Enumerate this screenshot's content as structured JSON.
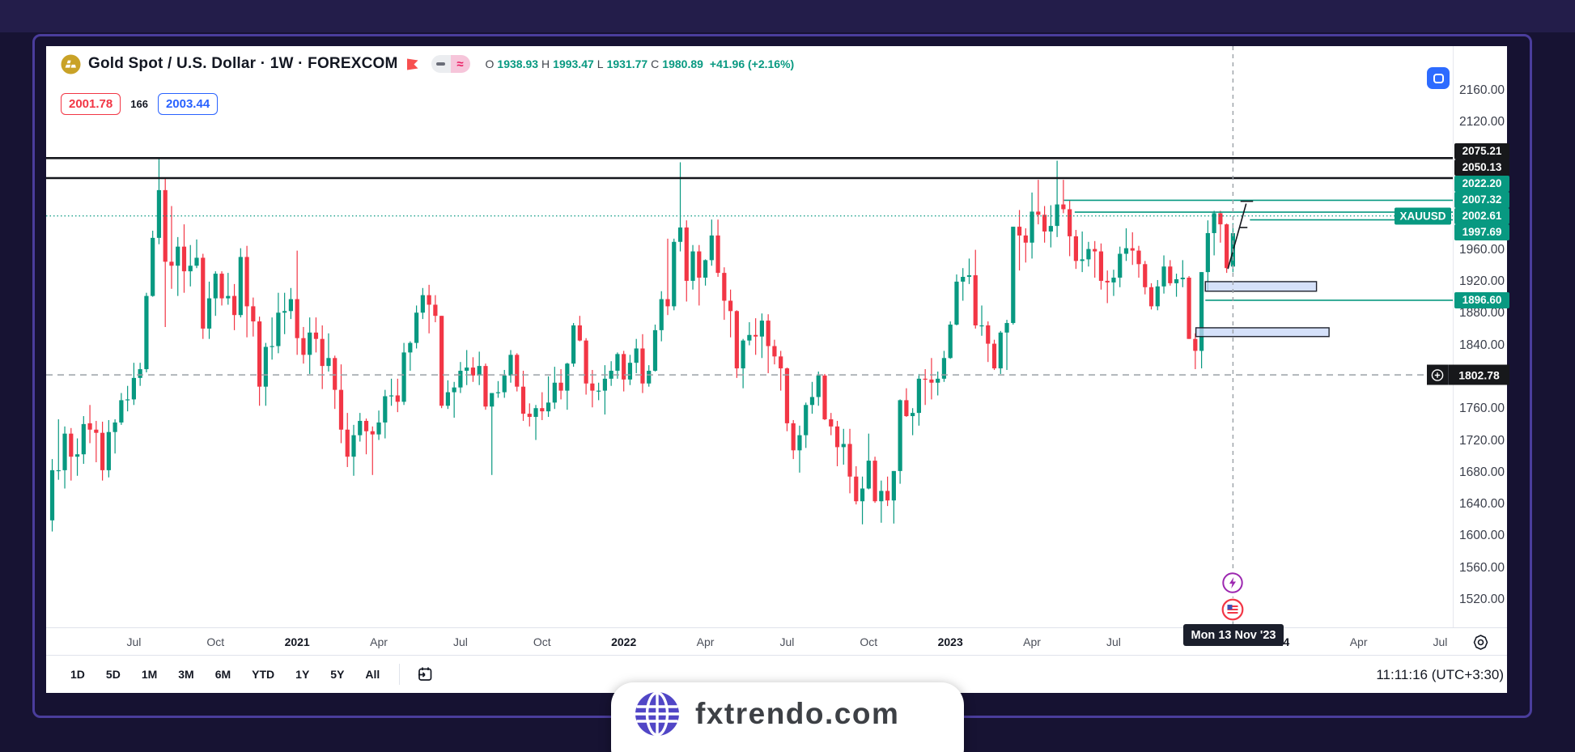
{
  "header": {
    "symbol_title": "Gold Spot / U.S. Dollar · 1W · FOREXCOM",
    "ohlc": {
      "o_label": "O",
      "o": "1938.93",
      "h_label": "H",
      "h": "1993.47",
      "l_label": "L",
      "l": "1931.77",
      "c_label": "C",
      "c": "1980.89",
      "change": "+41.96 (+2.16%)"
    },
    "sell_price": "2001.78",
    "spread": "166",
    "buy_price": "2003.44"
  },
  "toolbar": {
    "ranges": [
      "1D",
      "5D",
      "1M",
      "3M",
      "6M",
      "YTD",
      "1Y",
      "5Y",
      "All"
    ],
    "active_range": "5D",
    "clock": "11:11:16 (UTC+3:30)"
  },
  "watermark": {
    "text": "fxtrendo.com"
  },
  "colors": {
    "up": "#089981",
    "down": "#f23645",
    "sell": "#f23645",
    "buy": "#2962ff",
    "accent_blue": "#2d6bff",
    "black_line": "#15171c",
    "crosshair": "#9aa0a6",
    "event_purple": "#9c27b0",
    "event_red": "#f23645",
    "box_fill": "#c7d7f8",
    "frame_purple": "#4a3d9c"
  },
  "chart_data": {
    "type": "candlestick",
    "symbol": "XAUUSD",
    "symbol_label": "XAUUSD",
    "timeframe": "1W",
    "ylim": [
      1485,
      2216
    ],
    "grid": false,
    "price_ticks": [
      2160,
      2120,
      1960,
      1920,
      1880,
      1840,
      1760,
      1720,
      1680,
      1640,
      1600,
      1560,
      1520
    ],
    "time_ticks": [
      {
        "label": "Jul",
        "index": 13,
        "year": false
      },
      {
        "label": "Oct",
        "index": 26,
        "year": false
      },
      {
        "label": "2021",
        "index": 39,
        "year": true
      },
      {
        "label": "Apr",
        "index": 52,
        "year": false
      },
      {
        "label": "Jul",
        "index": 65,
        "year": false
      },
      {
        "label": "Oct",
        "index": 78,
        "year": false
      },
      {
        "label": "2022",
        "index": 91,
        "year": true
      },
      {
        "label": "Apr",
        "index": 104,
        "year": false
      },
      {
        "label": "Jul",
        "index": 117,
        "year": false
      },
      {
        "label": "Oct",
        "index": 130,
        "year": false
      },
      {
        "label": "2023",
        "index": 143,
        "year": true
      },
      {
        "label": "Apr",
        "index": 156,
        "year": false
      },
      {
        "label": "Jul",
        "index": 169,
        "year": false
      },
      {
        "label": "2024",
        "index": 195,
        "year": true
      },
      {
        "label": "Apr",
        "index": 208,
        "year": false
      },
      {
        "label": "Jul",
        "index": 221,
        "year": false
      }
    ],
    "badges": [
      {
        "price": 2075.21,
        "label": "2075.21",
        "style": "dark"
      },
      {
        "price": 2050.13,
        "label": "2050.13",
        "style": "dark"
      },
      {
        "price": 2022.2,
        "label": "2022.20",
        "style": "teal"
      },
      {
        "price": 2007.32,
        "label": "2007.32",
        "style": "teal"
      },
      {
        "price": 2002.61,
        "label": "2002.61",
        "style": "teal",
        "anchor": true
      },
      {
        "price": 1997.69,
        "label": "1997.69",
        "style": "teal"
      },
      {
        "price": 1896.6,
        "label": "1896.60",
        "style": "teal"
      },
      {
        "price": 1802.78,
        "label": "1802.78",
        "style": "cross"
      }
    ],
    "overlays": {
      "hlines": [
        {
          "price": 2075.21,
          "width": 2.6
        },
        {
          "price": 2050.13,
          "width": 2.6
        }
      ],
      "dotted_line": {
        "price": 2002.61
      },
      "dashed_hline": {
        "price": 1802.78
      },
      "rays": [
        {
          "price": 2022.2,
          "from_index": 161.1
        },
        {
          "price": 2007.32,
          "from_index": 162.8
        },
        {
          "price": 1997.69,
          "from_index": 190.7
        },
        {
          "price": 1896.6,
          "from_index": 183.6
        }
      ],
      "boxes": [
        {
          "price_top": 1920,
          "price_bottom": 1908,
          "from_index": 183.6,
          "to_index": 201.3
        },
        {
          "price_top": 1862,
          "price_bottom": 1851,
          "from_index": 182.1,
          "to_index": 203.3
        }
      ],
      "trend_lines": [
        {
          "x1_index": 187.2,
          "price1": 1936,
          "x2_index": 190.1,
          "price2": 2018
        },
        {
          "x1_index": 189.2,
          "price1": 2021,
          "x2_index": 191.2,
          "price2": 2021
        },
        {
          "x1_index": 189.1,
          "price1": 1988,
          "x2_index": 190.3,
          "price2": 1988
        }
      ]
    },
    "crosshair": {
      "index": 188,
      "price": 1802.78,
      "price_label": "1802.78",
      "time_label": "Mon 13 Nov '23"
    },
    "candles": [
      [
        1620,
        1697,
        1606,
        1683
      ],
      [
        1683,
        1747,
        1671,
        1683
      ],
      [
        1683,
        1738,
        1660,
        1729
      ],
      [
        1729,
        1736,
        1670,
        1700
      ],
      [
        1700,
        1723,
        1676,
        1703
      ],
      [
        1703,
        1751,
        1691,
        1741
      ],
      [
        1742,
        1765,
        1717,
        1734
      ],
      [
        1734,
        1745,
        1693,
        1730
      ],
      [
        1730,
        1744,
        1670,
        1683
      ],
      [
        1683,
        1746,
        1674,
        1731
      ],
      [
        1731,
        1747,
        1704,
        1743
      ],
      [
        1743,
        1780,
        1740,
        1771
      ],
      [
        1771,
        1789,
        1757,
        1772
      ],
      [
        1772,
        1818,
        1765,
        1799
      ],
      [
        1799,
        1818,
        1789,
        1810
      ],
      [
        1810,
        1906,
        1806,
        1902
      ],
      [
        1902,
        1984,
        1901,
        1975
      ],
      [
        1975,
        2075,
        1967,
        2035
      ],
      [
        2035,
        2050,
        1863,
        1945
      ],
      [
        1945,
        2015,
        1911,
        1940
      ],
      [
        1940,
        1976,
        1902,
        1964
      ],
      [
        1964,
        1992,
        1906,
        1933
      ],
      [
        1933,
        1966,
        1914,
        1940
      ],
      [
        1940,
        1973,
        1937,
        1950
      ],
      [
        1950,
        1955,
        1848,
        1861
      ],
      [
        1861,
        1920,
        1848,
        1899
      ],
      [
        1899,
        1933,
        1877,
        1930
      ],
      [
        1930,
        1933,
        1890,
        1899
      ],
      [
        1899,
        1931,
        1891,
        1902
      ],
      [
        1902,
        1917,
        1859,
        1878
      ],
      [
        1878,
        1962,
        1875,
        1951
      ],
      [
        1951,
        1965,
        1850,
        1889
      ],
      [
        1889,
        1900,
        1851,
        1870
      ],
      [
        1870,
        1876,
        1764,
        1788
      ],
      [
        1788,
        1843,
        1764,
        1838
      ],
      [
        1838,
        1875,
        1822,
        1839
      ],
      [
        1839,
        1906,
        1830,
        1881
      ],
      [
        1881,
        1906,
        1854,
        1883
      ],
      [
        1883,
        1912,
        1873,
        1898
      ],
      [
        1898,
        1959,
        1828,
        1849
      ],
      [
        1849,
        1863,
        1817,
        1828
      ],
      [
        1828,
        1875,
        1804,
        1856
      ],
      [
        1856,
        1875,
        1831,
        1848
      ],
      [
        1848,
        1865,
        1785,
        1814
      ],
      [
        1814,
        1855,
        1807,
        1824
      ],
      [
        1824,
        1827,
        1760,
        1784
      ],
      [
        1784,
        1816,
        1717,
        1734
      ],
      [
        1734,
        1755,
        1687,
        1700
      ],
      [
        1700,
        1740,
        1676,
        1727
      ],
      [
        1727,
        1755,
        1719,
        1745
      ],
      [
        1745,
        1748,
        1703,
        1732
      ],
      [
        1732,
        1738,
        1677,
        1728
      ],
      [
        1728,
        1758,
        1721,
        1743
      ],
      [
        1743,
        1784,
        1723,
        1776
      ],
      [
        1776,
        1798,
        1764,
        1777
      ],
      [
        1777,
        1798,
        1756,
        1769
      ],
      [
        1769,
        1843,
        1765,
        1831
      ],
      [
        1831,
        1845,
        1808,
        1843
      ],
      [
        1843,
        1890,
        1836,
        1881
      ],
      [
        1881,
        1912,
        1873,
        1903
      ],
      [
        1903,
        1916,
        1855,
        1891
      ],
      [
        1891,
        1903,
        1869,
        1877
      ],
      [
        1877,
        1877,
        1761,
        1764
      ],
      [
        1764,
        1796,
        1760,
        1781
      ],
      [
        1781,
        1794,
        1749,
        1787
      ],
      [
        1787,
        1819,
        1780,
        1808
      ],
      [
        1808,
        1834,
        1790,
        1812
      ],
      [
        1812,
        1825,
        1794,
        1802
      ],
      [
        1802,
        1832,
        1790,
        1814
      ],
      [
        1814,
        1817,
        1759,
        1763
      ],
      [
        1763,
        1780,
        1677,
        1780
      ],
      [
        1780,
        1795,
        1774,
        1781
      ],
      [
        1781,
        1809,
        1774,
        1802
      ],
      [
        1802,
        1834,
        1793,
        1828
      ],
      [
        1828,
        1830,
        1782,
        1788
      ],
      [
        1788,
        1808,
        1745,
        1754
      ],
      [
        1754,
        1767,
        1738,
        1750
      ],
      [
        1750,
        1765,
        1721,
        1761
      ],
      [
        1761,
        1781,
        1746,
        1757
      ],
      [
        1757,
        1801,
        1750,
        1768
      ],
      [
        1768,
        1813,
        1760,
        1793
      ],
      [
        1793,
        1810,
        1772,
        1783
      ],
      [
        1783,
        1818,
        1759,
        1817
      ],
      [
        1817,
        1868,
        1813,
        1865
      ],
      [
        1865,
        1877,
        1845,
        1846
      ],
      [
        1846,
        1849,
        1778,
        1792
      ],
      [
        1792,
        1809,
        1762,
        1783
      ],
      [
        1783,
        1793,
        1771,
        1783
      ],
      [
        1783,
        1815,
        1753,
        1798
      ],
      [
        1798,
        1820,
        1789,
        1808
      ],
      [
        1808,
        1831,
        1798,
        1829
      ],
      [
        1829,
        1833,
        1782,
        1797
      ],
      [
        1797,
        1828,
        1790,
        1818
      ],
      [
        1818,
        1848,
        1805,
        1836
      ],
      [
        1836,
        1854,
        1780,
        1792
      ],
      [
        1792,
        1815,
        1788,
        1808
      ],
      [
        1808,
        1866,
        1807,
        1859
      ],
      [
        1859,
        1908,
        1845,
        1898
      ],
      [
        1898,
        1974,
        1878,
        1889
      ],
      [
        1889,
        1974,
        1884,
        1970
      ],
      [
        1970,
        2070,
        1958,
        1988
      ],
      [
        1988,
        1997,
        1895,
        1921
      ],
      [
        1921,
        1966,
        1910,
        1958
      ],
      [
        1958,
        1966,
        1890,
        1925
      ],
      [
        1925,
        1948,
        1915,
        1947
      ],
      [
        1947,
        1998,
        1940,
        1978
      ],
      [
        1978,
        1998,
        1926,
        1931
      ],
      [
        1931,
        1938,
        1872,
        1896
      ],
      [
        1896,
        1910,
        1850,
        1883
      ],
      [
        1883,
        1884,
        1799,
        1811
      ],
      [
        1811,
        1848,
        1786,
        1846
      ],
      [
        1846,
        1869,
        1840,
        1853
      ],
      [
        1853,
        1874,
        1828,
        1851
      ],
      [
        1851,
        1880,
        1824,
        1871
      ],
      [
        1871,
        1879,
        1805,
        1839
      ],
      [
        1839,
        1847,
        1816,
        1826
      ],
      [
        1826,
        1833,
        1783,
        1811
      ],
      [
        1811,
        1812,
        1732,
        1742
      ],
      [
        1742,
        1746,
        1697,
        1708
      ],
      [
        1708,
        1739,
        1680,
        1727
      ],
      [
        1727,
        1768,
        1711,
        1765
      ],
      [
        1765,
        1794,
        1754,
        1775
      ],
      [
        1775,
        1807,
        1764,
        1802
      ],
      [
        1802,
        1804,
        1746,
        1747
      ],
      [
        1747,
        1755,
        1727,
        1738
      ],
      [
        1738,
        1745,
        1688,
        1712
      ],
      [
        1712,
        1735,
        1690,
        1716
      ],
      [
        1716,
        1735,
        1654,
        1675
      ],
      [
        1675,
        1688,
        1640,
        1644
      ],
      [
        1644,
        1675,
        1615,
        1660
      ],
      [
        1660,
        1729,
        1659,
        1695
      ],
      [
        1695,
        1700,
        1642,
        1644
      ],
      [
        1644,
        1670,
        1617,
        1657
      ],
      [
        1657,
        1675,
        1638,
        1645
      ],
      [
        1645,
        1682,
        1616,
        1682
      ],
      [
        1682,
        1772,
        1666,
        1771
      ],
      [
        1771,
        1786,
        1750,
        1751
      ],
      [
        1751,
        1761,
        1727,
        1755
      ],
      [
        1755,
        1804,
        1739,
        1798
      ],
      [
        1798,
        1810,
        1765,
        1797
      ],
      [
        1797,
        1824,
        1772,
        1793
      ],
      [
        1793,
        1807,
        1777,
        1798
      ],
      [
        1798,
        1833,
        1794,
        1824
      ],
      [
        1824,
        1870,
        1823,
        1866
      ],
      [
        1866,
        1929,
        1865,
        1920
      ],
      [
        1920,
        1937,
        1896,
        1926
      ],
      [
        1926,
        1949,
        1917,
        1928
      ],
      [
        1928,
        1960,
        1861,
        1865
      ],
      [
        1865,
        1890,
        1852,
        1865
      ],
      [
        1865,
        1870,
        1819,
        1842
      ],
      [
        1842,
        1847,
        1809,
        1811
      ],
      [
        1811,
        1858,
        1804,
        1856
      ],
      [
        1856,
        1872,
        1809,
        1868
      ],
      [
        1868,
        1989,
        1866,
        1989
      ],
      [
        1989,
        2010,
        1934,
        1978
      ],
      [
        1978,
        1987,
        1944,
        1969
      ],
      [
        1969,
        2032,
        1949,
        2008
      ],
      [
        2008,
        2048,
        1992,
        2004
      ],
      [
        2004,
        2015,
        1969,
        1983
      ],
      [
        1983,
        2016,
        1963,
        1990
      ],
      [
        1990,
        2072,
        1976,
        2017
      ],
      [
        2017,
        2048,
        2006,
        2011
      ],
      [
        2011,
        2022,
        1952,
        1977
      ],
      [
        1977,
        1985,
        1936,
        1946
      ],
      [
        1946,
        1983,
        1932,
        1948
      ],
      [
        1948,
        1970,
        1939,
        1961
      ],
      [
        1961,
        1971,
        1925,
        1958
      ],
      [
        1958,
        1968,
        1910,
        1921
      ],
      [
        1921,
        1934,
        1893,
        1919
      ],
      [
        1919,
        1935,
        1902,
        1925
      ],
      [
        1925,
        1964,
        1913,
        1955
      ],
      [
        1955,
        1987,
        1946,
        1962
      ],
      [
        1962,
        1982,
        1941,
        1959
      ],
      [
        1959,
        1965,
        1925,
        1942
      ],
      [
        1942,
        1946,
        1904,
        1913
      ],
      [
        1913,
        1918,
        1885,
        1889
      ],
      [
        1889,
        1922,
        1884,
        1914
      ],
      [
        1914,
        1953,
        1905,
        1939
      ],
      [
        1939,
        1947,
        1915,
        1918
      ],
      [
        1918,
        1930,
        1901,
        1923
      ],
      [
        1923,
        1947,
        1913,
        1925
      ],
      [
        1925,
        1927,
        1848,
        1848
      ],
      [
        1848,
        1855,
        1810,
        1833
      ],
      [
        1833,
        1932,
        1811,
        1932
      ],
      [
        1932,
        1997,
        1908,
        1981
      ],
      [
        1981,
        2009,
        1953,
        2006
      ],
      [
        2006,
        2009,
        1969,
        1992
      ],
      [
        1992,
        1993,
        1931,
        1937
      ],
      [
        1938.93,
        1993.47,
        1931.77,
        1980.89
      ]
    ]
  }
}
